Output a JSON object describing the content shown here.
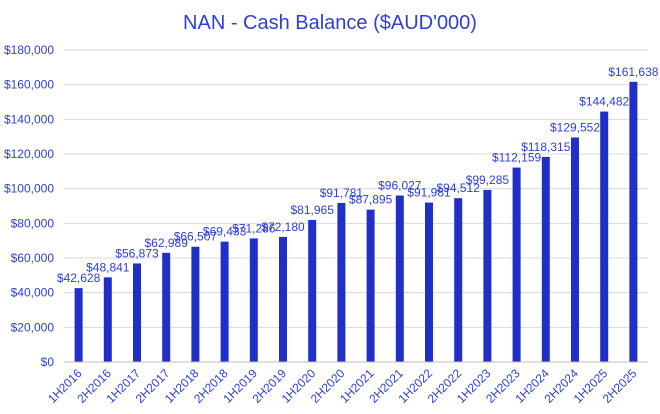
{
  "chart_data": {
    "type": "bar",
    "title": "NAN - Cash Balance ($AUD'000)",
    "xlabel": "",
    "ylabel": "",
    "ylim": [
      0,
      180000
    ],
    "yticks": [
      0,
      20000,
      40000,
      60000,
      80000,
      100000,
      120000,
      140000,
      160000,
      180000
    ],
    "ytick_labels": [
      "$0",
      "$20,000",
      "$40,000",
      "$60,000",
      "$80,000",
      "$100,000",
      "$120,000",
      "$140,000",
      "$160,000",
      "$180,000"
    ],
    "grid": true,
    "legend": "none",
    "categories": [
      "1H2016",
      "2H2016",
      "1H2017",
      "2H2017",
      "1H2018",
      "2H2018",
      "1H2019",
      "2H2019",
      "1H2020",
      "2H2020",
      "1H2021",
      "2H2021",
      "1H2022",
      "2H2022",
      "1H2023",
      "2H2023",
      "1H2024",
      "2H2024",
      "1H2025",
      "2H2025"
    ],
    "values": [
      42628,
      48841,
      56873,
      62989,
      66507,
      69433,
      71286,
      72180,
      81965,
      91781,
      87895,
      96027,
      91981,
      94512,
      99285,
      112159,
      118315,
      129552,
      144482,
      161638
    ],
    "data_labels": [
      "$42,628",
      "$48,841",
      "$56,873",
      "$62,989",
      "$66,507",
      "$69,433",
      "$71,286",
      "$72,180",
      "$81,965",
      "$91,781",
      "$87,895",
      "$96,027",
      "$91,981",
      "$94,512",
      "$99,285",
      "$112,159",
      "$118,315",
      "$129,552",
      "$144,482",
      "$161,638"
    ],
    "colors": {
      "bar": "#1f2fc8",
      "text": "#2e3fd6",
      "grid": "#d9d9d9"
    }
  }
}
